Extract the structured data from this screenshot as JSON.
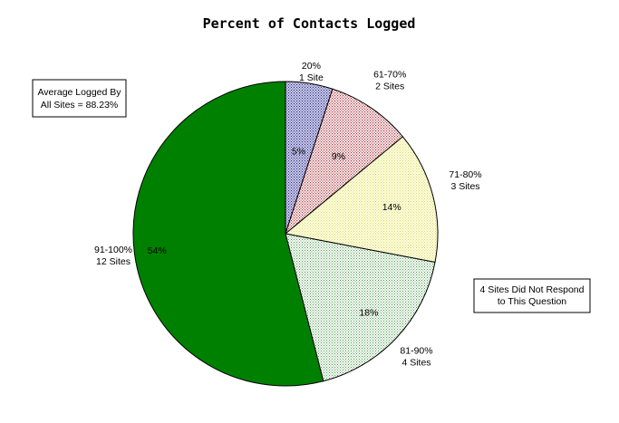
{
  "chart_data": {
    "type": "pie",
    "title": "Percent of Contacts Logged",
    "slices": [
      {
        "label_line1": "20%",
        "label_line2": "1 Site",
        "value": 5,
        "percent_label": "5%",
        "color": "#a6a6d0",
        "pattern": "dots-blue"
      },
      {
        "label_line1": "61-70%",
        "label_line2": "2 Sites",
        "value": 9,
        "percent_label": "9%",
        "color": "#f3d3d3",
        "pattern": "dots-red"
      },
      {
        "label_line1": "71-80%",
        "label_line2": "3 Sites",
        "value": 14,
        "percent_label": "14%",
        "color": "#ffffcc",
        "pattern": "dots-yellow"
      },
      {
        "label_line1": "81-90%",
        "label_line2": "4 Sites",
        "value": 18,
        "percent_label": "18%",
        "color": "#dff2df",
        "pattern": "dots-green"
      },
      {
        "label_line1": "91-100%",
        "label_line2": "12 Sites",
        "value": 54,
        "percent_label": "54%",
        "color": "#008000",
        "pattern": "solid"
      }
    ],
    "notes": [
      {
        "line1": "Average Logged By",
        "line2": "All Sites = 88.23%"
      },
      {
        "line1": "4 Sites Did Not Respond",
        "line2": "to This Question"
      }
    ]
  }
}
